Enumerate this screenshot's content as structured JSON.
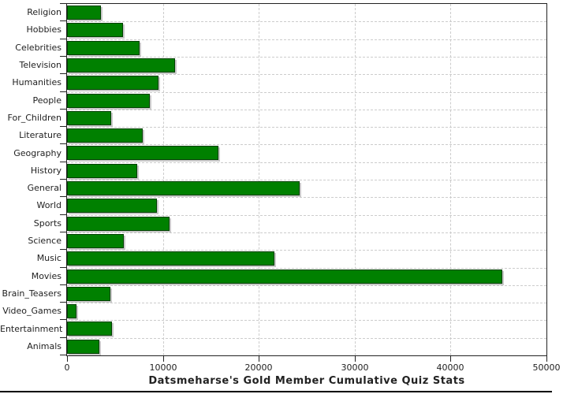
{
  "chart_data": {
    "type": "bar",
    "orientation": "horizontal",
    "title": "Datsmeharse's Gold Member Cumulative Quiz Stats",
    "categories": [
      "Religion",
      "Hobbies",
      "Celebrities",
      "Television",
      "Humanities",
      "People",
      "For_Children",
      "Literature",
      "Geography",
      "History",
      "General",
      "World",
      "Sports",
      "Science",
      "Music",
      "Movies",
      "Brain_Teasers",
      "Video_Games",
      "Entertainment",
      "Animals"
    ],
    "values": [
      3500,
      5800,
      7600,
      11300,
      9500,
      8600,
      4600,
      7900,
      15800,
      7300,
      24300,
      9400,
      10700,
      5900,
      21600,
      45400,
      4500,
      1000,
      4700,
      3400
    ],
    "x_ticks": [
      0,
      10000,
      20000,
      30000,
      40000,
      50000
    ],
    "x_tick_labels": [
      "0",
      "10000",
      "20000",
      "30000",
      "40000",
      "50000"
    ],
    "xlim": [
      0,
      50000
    ],
    "xlabel": "",
    "ylabel": "",
    "legend": "none",
    "grid": "dashed-both-axes",
    "colors": {
      "bar_fill": "#008000",
      "bar_border": "#004000",
      "bar_shadow": "#c9c9c9",
      "grid": "#cccccc",
      "axis": "#222222",
      "text": "#222222",
      "background": "#ffffff",
      "bottom_border": "#000000"
    }
  }
}
